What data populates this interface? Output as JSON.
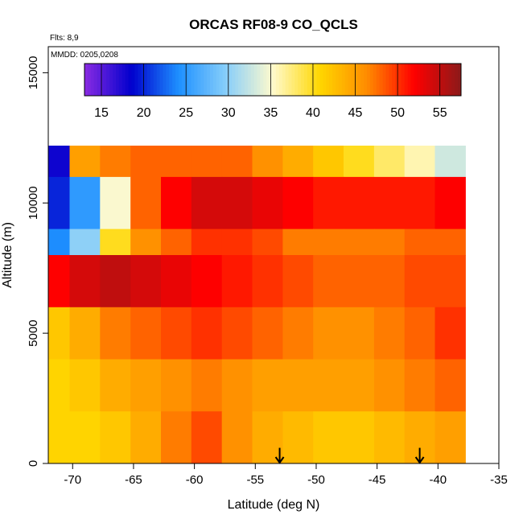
{
  "chart_data": {
    "type": "heatmap",
    "title": "ORCAS RF08-9 CO_QCLS",
    "xlabel": "Latitude (deg N)",
    "ylabel": "Altitude (m)",
    "xlim": [
      -72,
      -35
    ],
    "ylim": [
      0,
      16000
    ],
    "x_ticks": [
      -70,
      -65,
      -60,
      -55,
      -50,
      -45,
      -40,
      -35
    ],
    "x_tick_labels": [
      "-70",
      "-65",
      "-60",
      "-55",
      "-50",
      "-45",
      "-40",
      "-35"
    ],
    "y_ticks": [
      0,
      5000,
      10000,
      15000
    ],
    "y_tick_labels": [
      "0",
      "5000",
      "10000",
      "15000"
    ],
    "flights_note": "Flts: 8,9",
    "date_note": "MMDD: 0205,0208",
    "colorbar": {
      "range": [
        13,
        57.5
      ],
      "ticks": [
        15,
        20,
        25,
        30,
        35,
        40,
        45,
        50,
        55
      ],
      "tick_labels": [
        "15",
        "20",
        "25",
        "30",
        "35",
        "40",
        "45",
        "50",
        "55"
      ],
      "colors": [
        "#8a2be2",
        "#0000cd",
        "#1e90ff",
        "#87cefa",
        "#fffacd",
        "#ffd700",
        "#ff8c00",
        "#ff0000",
        "#8b1a1a"
      ]
    },
    "markers": [
      {
        "type": "arrow-down",
        "latitude": -53.0,
        "altitude": 600
      },
      {
        "type": "arrow-down",
        "latitude": -41.5,
        "altitude": 600
      }
    ],
    "altitude_bands": [
      {
        "alt_range": [
          11000,
          12200
        ],
        "values": [
          18,
          45,
          47,
          48,
          48,
          48,
          48,
          46,
          44,
          42,
          40,
          38,
          36,
          33
        ]
      },
      {
        "alt_range": [
          9000,
          11000
        ],
        "values": [
          20,
          25,
          35,
          48,
          52,
          54,
          54,
          53,
          52,
          51,
          51,
          51,
          51,
          52
        ]
      },
      {
        "alt_range": [
          8000,
          9000
        ],
        "values": [
          24,
          30,
          40,
          46,
          48,
          50,
          50,
          49,
          47,
          47,
          47,
          47,
          48,
          48
        ]
      },
      {
        "alt_range": [
          6000,
          8000
        ],
        "values": [
          52,
          54,
          55,
          54,
          53,
          52,
          51,
          50,
          49,
          48,
          48,
          48,
          49,
          49
        ]
      },
      {
        "alt_range": [
          4000,
          6000
        ],
        "values": [
          42,
          44,
          47,
          48,
          49,
          50,
          49,
          48,
          47,
          46,
          46,
          47,
          48,
          50
        ]
      },
      {
        "alt_range": [
          2000,
          4000
        ],
        "values": [
          41,
          42,
          44,
          45,
          46,
          47,
          46,
          45,
          45,
          45,
          45,
          46,
          47,
          48
        ]
      },
      {
        "alt_range": [
          0,
          2000
        ],
        "values": [
          41,
          41,
          42,
          44,
          47,
          49,
          46,
          44,
          43,
          42,
          42,
          43,
          44,
          45
        ]
      }
    ],
    "band_latitudes": [
      -71.5,
      -69,
      -66.5,
      -64,
      -61.5,
      -59,
      -56.5,
      -54,
      -51.5,
      -49,
      -46.5,
      -44,
      -41.5,
      -39
    ]
  }
}
